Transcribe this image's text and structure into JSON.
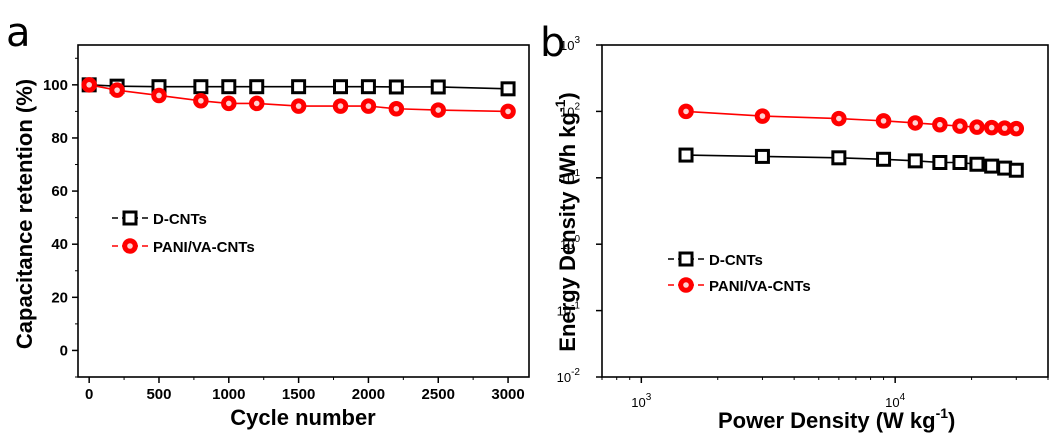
{
  "chart_data": [
    {
      "panel": "a",
      "type": "line",
      "xlabel": "Cycle number",
      "ylabel": "Capacitance retention (%)",
      "xlim": [
        -80,
        3150
      ],
      "ylim": [
        -10,
        115
      ],
      "x_ticks": [
        0,
        500,
        1000,
        1500,
        2000,
        2500,
        3000
      ],
      "y_ticks": [
        0,
        20,
        40,
        60,
        80,
        100
      ],
      "legend_position": "center-left",
      "series": [
        {
          "name": "D-CNTs",
          "color": "#000000",
          "marker": "open-square",
          "x": [
            0,
            200,
            500,
            800,
            1000,
            1200,
            1500,
            1800,
            2000,
            2200,
            2500,
            3000
          ],
          "y": [
            100,
            99.5,
            99.3,
            99.3,
            99.3,
            99.3,
            99.3,
            99.3,
            99.3,
            99.2,
            99.2,
            98.5
          ]
        },
        {
          "name": "PANI/VA-CNTs",
          "color": "#ff0000",
          "marker": "circle",
          "x": [
            0,
            200,
            500,
            800,
            1000,
            1200,
            1500,
            1800,
            2000,
            2200,
            2500,
            3000
          ],
          "y": [
            100,
            98,
            96,
            94,
            93,
            93,
            92,
            92,
            92,
            91,
            90.5,
            90
          ]
        }
      ]
    },
    {
      "panel": "b",
      "type": "line",
      "xscale": "log",
      "yscale": "log",
      "xlabel": "Power Density (W kg",
      "xlabel_sup": "-1",
      "xlabel_end": ")",
      "ylabel": "Energy Density (Wh kg",
      "ylabel_sup": "-1",
      "ylabel_end": ")",
      "xlim": [
        700,
        40000
      ],
      "ylim": [
        0.01,
        1000
      ],
      "x_ticks": [
        {
          "value": 1000,
          "base": "10",
          "exp": "3"
        },
        {
          "value": 10000,
          "base": "10",
          "exp": "4"
        }
      ],
      "y_ticks": [
        {
          "value": 0.01,
          "base": "10",
          "exp": "-2"
        },
        {
          "value": 0.1,
          "base": "10",
          "exp": "-1"
        },
        {
          "value": 1,
          "base": "10",
          "exp": "0"
        },
        {
          "value": 10,
          "base": "10",
          "exp": "1"
        },
        {
          "value": 100,
          "base": "10",
          "exp": "2"
        },
        {
          "value": 1000,
          "base": "10",
          "exp": "3"
        }
      ],
      "legend_position": "center-left",
      "series": [
        {
          "name": "D-CNTs",
          "color": "#000000",
          "marker": "open-square",
          "x": [
            1500,
            3000,
            6000,
            9000,
            12000,
            15000,
            18000,
            21000,
            24000,
            27000,
            30000
          ],
          "y": [
            22,
            21,
            20,
            19,
            18,
            17,
            17,
            16,
            15,
            14,
            13
          ]
        },
        {
          "name": "PANI/VA-CNTs",
          "color": "#ff0000",
          "marker": "circle",
          "x": [
            1500,
            3000,
            6000,
            9000,
            12000,
            15000,
            18000,
            21000,
            24000,
            27000,
            30000
          ],
          "y": [
            100,
            85,
            78,
            72,
            67,
            63,
            60,
            58,
            57,
            56,
            55
          ]
        }
      ]
    }
  ]
}
